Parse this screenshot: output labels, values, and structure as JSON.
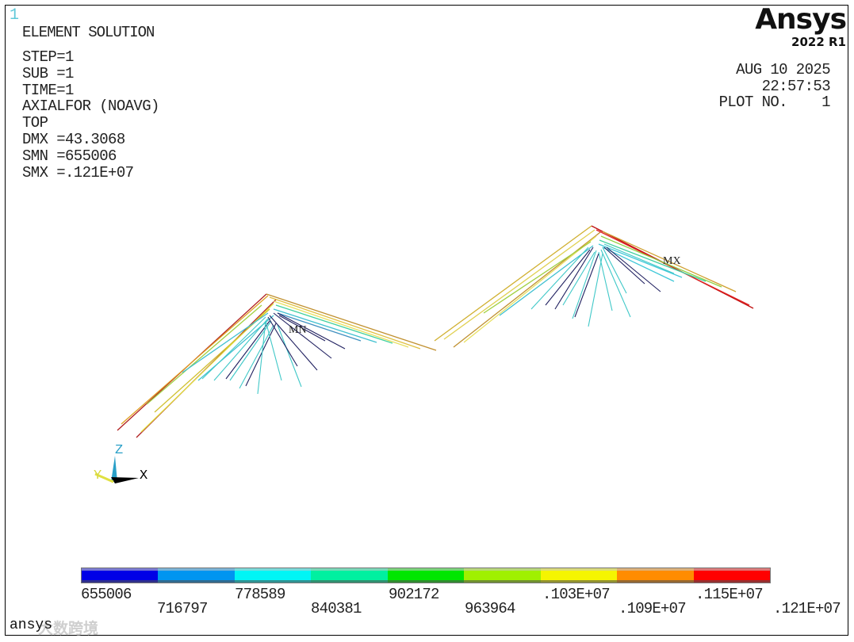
{
  "window": {
    "number": "1"
  },
  "header": {
    "title": "ELEMENT SOLUTION",
    "info": [
      "STEP=1",
      "SUB =1",
      "TIME=1",
      "AXIALFOR (NOAVG)",
      "TOP",
      "DMX =43.3068",
      "SMN =655006",
      "SMX =.121E+07"
    ]
  },
  "logo": {
    "brand": "Ansys",
    "version": "2022 R1"
  },
  "plot_info": {
    "date": "AUG 10 2025",
    "time": "22:57:53",
    "plot_no": "PLOT NO.    1"
  },
  "markers": {
    "min": "MN",
    "max": "MX"
  },
  "triad": {
    "x": "X",
    "y": "Y",
    "z": "Z"
  },
  "legend": {
    "colors": [
      "#0000e6",
      "#0095f0",
      "#00f5f5",
      "#00f0a0",
      "#00e600",
      "#a0f000",
      "#f5f500",
      "#ff8c00",
      "#ff0000"
    ],
    "labels_top": [
      "655006",
      "778589",
      "902172",
      ".103E+07",
      ".115E+07"
    ],
    "labels_bottom": [
      "716797",
      "840381",
      "963964",
      ".109E+07",
      ".121E+07"
    ]
  },
  "footer": {
    "label": "ansys",
    "watermark": "大数跨境"
  }
}
